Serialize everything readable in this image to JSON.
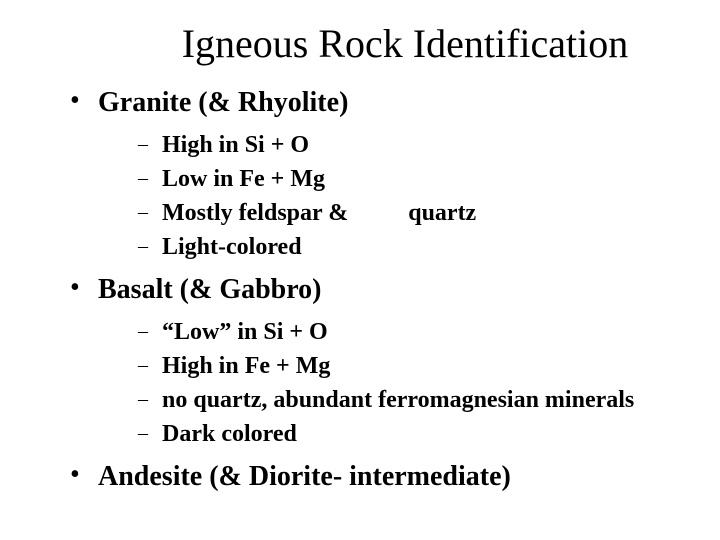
{
  "title": "Igneous Rock Identification",
  "bullets": [
    {
      "label": "Granite (& Rhyolite)",
      "sub": [
        {
          "label": "High in Si + O"
        },
        {
          "label": "Low in Fe + Mg"
        },
        {
          "label": "Mostly feldspar &",
          "extra": "quartz"
        },
        {
          "label": "Light-colored"
        }
      ]
    },
    {
      "label": "Basalt (& Gabbro)",
      "sub": [
        {
          "label": "“Low” in Si + O"
        },
        {
          "label": "High in Fe + Mg"
        },
        {
          "label": "no quartz, abundant ferromagnesian minerals"
        },
        {
          "label": "Dark colored"
        }
      ]
    },
    {
      "label": "Andesite (& Diorite- intermediate)",
      "sub": []
    }
  ],
  "colors": {
    "background": "#ffffff",
    "text": "#000000"
  },
  "fonts": {
    "family": "Times New Roman",
    "title_size_pt": 40,
    "l1_size_pt": 28,
    "l2_size_pt": 24,
    "l1_weight": "bold",
    "l2_weight": "bold"
  }
}
